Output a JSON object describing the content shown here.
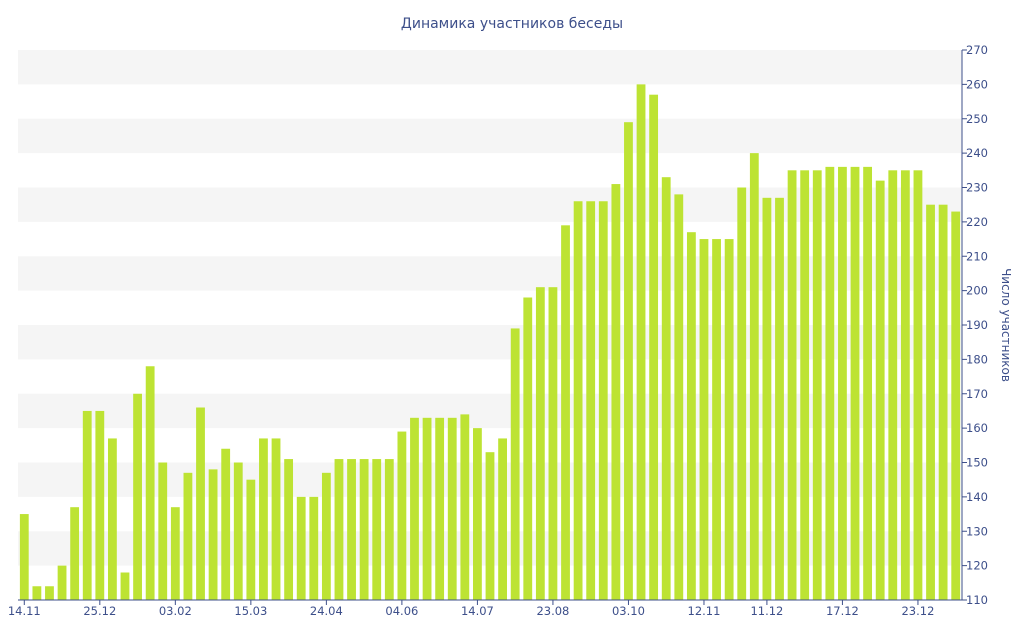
{
  "chart_data": {
    "type": "bar",
    "title": "Динамика участников беседы",
    "xlabel": "",
    "ylabel": "Число участников",
    "ylim": [
      110,
      270
    ],
    "y_ticks": [
      110,
      120,
      130,
      140,
      150,
      160,
      170,
      180,
      190,
      200,
      210,
      220,
      230,
      240,
      250,
      260,
      270
    ],
    "x_tick_labels": [
      "14.11",
      "25.12",
      "03.02",
      "15.03",
      "24.04",
      "04.06",
      "14.07",
      "23.08",
      "03.10",
      "12.11",
      "11.12",
      "17.12",
      "23.12"
    ],
    "x_tick_bar_index": [
      0,
      6,
      12,
      18,
      24,
      30,
      36,
      42,
      48,
      54,
      59,
      65,
      71
    ],
    "grid": "horizontal alternating bands",
    "legend": "none",
    "colors": {
      "bar": "#bde333",
      "band": "#f5f5f5",
      "axis": "#3d4f8a"
    },
    "values": [
      135,
      114,
      114,
      120,
      137,
      165,
      165,
      157,
      118,
      170,
      178,
      150,
      137,
      147,
      166,
      148,
      154,
      150,
      145,
      157,
      157,
      151,
      140,
      140,
      147,
      151,
      151,
      151,
      151,
      151,
      159,
      163,
      163,
      163,
      163,
      164,
      160,
      153,
      157,
      189,
      198,
      201,
      201,
      219,
      226,
      226,
      226,
      231,
      249,
      260,
      257,
      233,
      228,
      217,
      215,
      215,
      215,
      230,
      240,
      227,
      227,
      235,
      235,
      235,
      236,
      236,
      236,
      236,
      232,
      235,
      235,
      235,
      225,
      225,
      223
    ]
  }
}
